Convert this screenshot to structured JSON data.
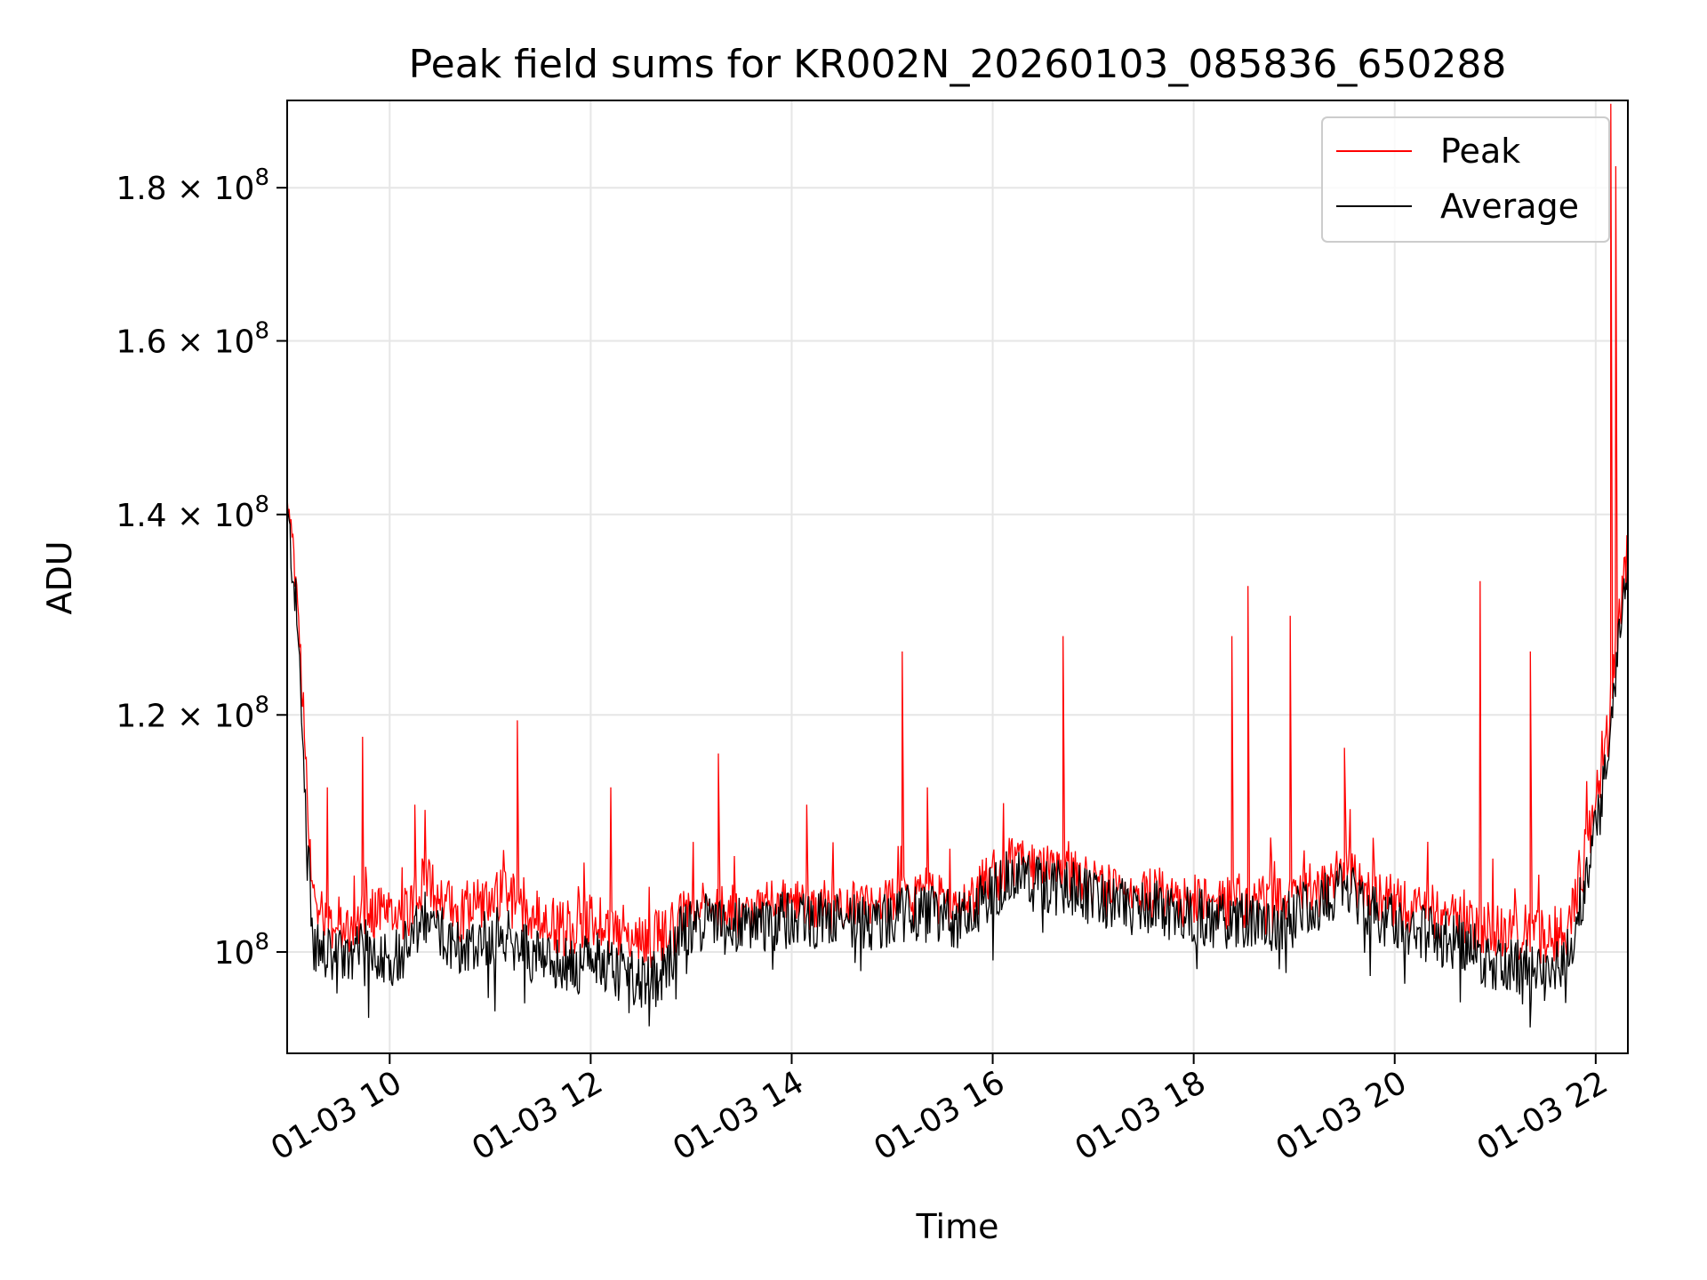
{
  "chart_data": {
    "type": "line",
    "title": "Peak field sums for KR002N_20260103_085836_650288",
    "xlabel": "Time",
    "ylabel": "ADU",
    "yscale": "log",
    "xlim": [
      8.98,
      22.32
    ],
    "ylim": [
      92500000,
      192500000
    ],
    "grid": true,
    "legend_position": "top-right",
    "x_ticks": [
      {
        "value": 10,
        "label": "01-03 10"
      },
      {
        "value": 12,
        "label": "01-03 12"
      },
      {
        "value": 14,
        "label": "01-03 14"
      },
      {
        "value": 16,
        "label": "01-03 16"
      },
      {
        "value": 18,
        "label": "01-03 18"
      },
      {
        "value": 20,
        "label": "01-03 20"
      },
      {
        "value": 22,
        "label": "01-03 22"
      }
    ],
    "y_ticks": [
      {
        "value": 100000000,
        "mantissa": "",
        "exponent": "8"
      },
      {
        "value": 120000000,
        "mantissa": "1.2",
        "exponent": "8"
      },
      {
        "value": 140000000,
        "mantissa": "1.4",
        "exponent": "8"
      },
      {
        "value": 160000000,
        "mantissa": "1.6",
        "exponent": "8"
      },
      {
        "value": 180000000,
        "mantissa": "1.8",
        "exponent": "8"
      }
    ],
    "x": [
      8.98,
      9.05,
      9.12,
      9.18,
      9.25,
      9.4,
      9.6,
      9.8,
      10.0,
      10.2,
      10.35,
      10.5,
      10.7,
      10.9,
      11.1,
      11.3,
      11.5,
      11.7,
      11.9,
      12.1,
      12.3,
      12.5,
      12.7,
      12.9,
      13.1,
      13.3,
      13.6,
      13.9,
      14.2,
      14.5,
      14.8,
      15.1,
      15.4,
      15.7,
      16.0,
      16.2,
      16.4,
      16.6,
      16.8,
      17.0,
      17.3,
      17.6,
      17.9,
      18.2,
      18.5,
      18.8,
      19.1,
      19.3,
      19.5,
      19.7,
      19.9,
      20.1,
      20.3,
      20.5,
      20.7,
      20.9,
      21.1,
      21.3,
      21.5,
      21.7,
      21.9,
      22.0,
      22.1,
      22.2,
      22.32
    ],
    "series": [
      {
        "name": "Peak",
        "color": "#ff0000",
        "values": [
          141000000,
          134000000,
          125000000,
          112000000,
          104000000,
          102500000,
          102000000,
          103500000,
          102500000,
          103500000,
          105500000,
          104500000,
          103000000,
          104000000,
          104500000,
          103500000,
          102500000,
          102000000,
          102000000,
          102500000,
          101500000,
          101000000,
          101000000,
          102500000,
          103500000,
          103000000,
          103000000,
          103500000,
          103500000,
          103500000,
          103000000,
          104000000,
          104000000,
          103500000,
          106000000,
          107000000,
          106500000,
          106000000,
          106000000,
          105000000,
          104500000,
          104500000,
          104000000,
          103500000,
          104000000,
          103500000,
          104500000,
          105000000,
          106500000,
          104500000,
          104000000,
          103500000,
          103000000,
          102500000,
          102500000,
          102000000,
          101500000,
          101500000,
          101000000,
          101500000,
          108000000,
          112000000,
          117000000,
          126000000,
          136000000
        ],
        "spikes": [
          {
            "x": 9.38,
            "value": 113500000
          },
          {
            "x": 9.73,
            "value": 118000000
          },
          {
            "x": 10.25,
            "value": 112000000
          },
          {
            "x": 11.27,
            "value": 119500000
          },
          {
            "x": 12.2,
            "value": 113500000
          },
          {
            "x": 13.27,
            "value": 116500000
          },
          {
            "x": 14.15,
            "value": 112000000
          },
          {
            "x": 15.1,
            "value": 126000000
          },
          {
            "x": 15.35,
            "value": 113500000
          },
          {
            "x": 16.7,
            "value": 127500000
          },
          {
            "x": 18.38,
            "value": 127500000
          },
          {
            "x": 18.54,
            "value": 132500000
          },
          {
            "x": 18.96,
            "value": 129500000
          },
          {
            "x": 19.5,
            "value": 117000000
          },
          {
            "x": 20.85,
            "value": 133000000
          },
          {
            "x": 21.35,
            "value": 126000000
          },
          {
            "x": 22.15,
            "value": 192000000
          },
          {
            "x": 22.2,
            "value": 183000000
          }
        ]
      },
      {
        "name": "Average",
        "color": "#000000",
        "values": [
          140000000,
          133000000,
          122000000,
          108000000,
          100500000,
          99500000,
          99500000,
          100500000,
          99500000,
          100500000,
          102500000,
          101500000,
          100500000,
          101000000,
          101500000,
          100500000,
          99500000,
          99000000,
          99000000,
          99500000,
          98500000,
          98000000,
          98000000,
          101500000,
          102500000,
          102000000,
          102000000,
          102500000,
          102500000,
          102500000,
          102000000,
          103000000,
          103000000,
          102500000,
          105000000,
          106000000,
          105500000,
          105000000,
          105000000,
          104000000,
          103500000,
          103500000,
          103000000,
          102500000,
          102500000,
          102000000,
          103500000,
          104000000,
          105500000,
          103500000,
          102500000,
          102000000,
          101500000,
          101000000,
          100500000,
          99500000,
          99000000,
          99000000,
          98500000,
          99000000,
          105500000,
          109500000,
          115000000,
          124000000,
          135000000
        ]
      }
    ]
  }
}
